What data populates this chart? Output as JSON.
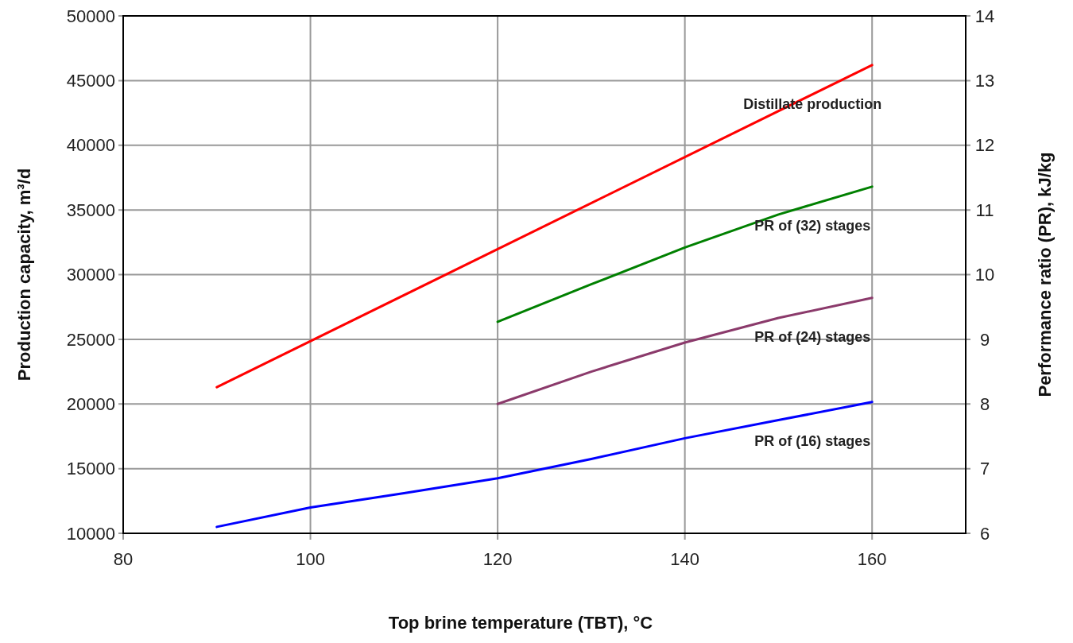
{
  "chart_data": {
    "type": "line",
    "xlabel": "Top brine temperature (TBT), °C",
    "ylabel": "Production capacity, m³/d",
    "y2label": "Performance ratio (PR), kJ/kg",
    "xlim": [
      80,
      170
    ],
    "xticks": [
      80,
      100,
      120,
      140,
      160
    ],
    "ylim": [
      10000,
      50000
    ],
    "yticks": [
      10000,
      15000,
      20000,
      25000,
      30000,
      35000,
      40000,
      45000,
      50000
    ],
    "y2lim": [
      6,
      14
    ],
    "y2ticks": [
      6,
      7,
      8,
      9,
      10,
      11,
      12,
      13,
      14
    ],
    "grid": true,
    "series": [
      {
        "name": "Distillate production",
        "color": "#ff0000",
        "x": [
          90,
          160
        ],
        "values": [
          21300,
          46200
        ]
      },
      {
        "name": "PR of (32) stages",
        "color": "#008000",
        "axis": "y2",
        "x": [
          120,
          130,
          140,
          150,
          160
        ],
        "values": [
          9.27,
          9.85,
          10.42,
          10.93,
          11.36
        ]
      },
      {
        "name": "PR of (24) stages",
        "color": "#8b3a6b",
        "axis": "y2",
        "x": [
          120,
          130,
          140,
          150,
          160
        ],
        "values": [
          8.0,
          8.5,
          8.95,
          9.33,
          9.64
        ]
      },
      {
        "name": "PR of (16) stages",
        "color": "#0000ff",
        "axis": "y2",
        "x": [
          90,
          100,
          110,
          120,
          130,
          140,
          150,
          160
        ],
        "values": [
          6.1,
          6.4,
          6.62,
          6.85,
          7.15,
          7.47,
          7.75,
          8.03
        ]
      }
    ]
  }
}
